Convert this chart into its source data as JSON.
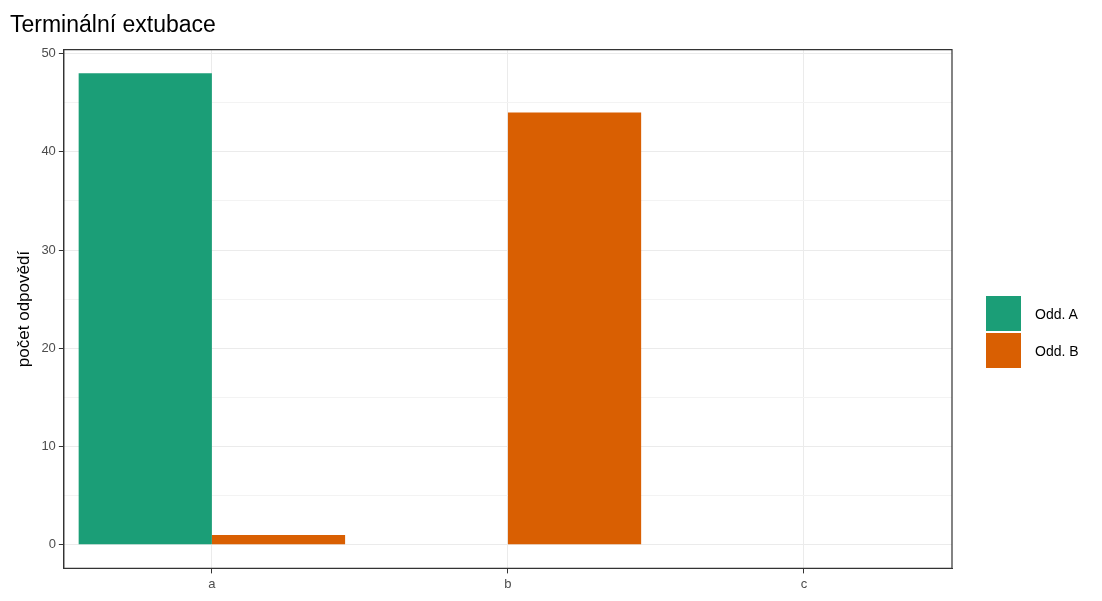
{
  "chart_data": {
    "type": "bar",
    "title": "Terminální extubace",
    "ylabel": "počet odpovědí",
    "categories": [
      "a",
      "b",
      "c"
    ],
    "series": [
      {
        "name": "Odd. A",
        "color": "#1b9e77",
        "values": [
          48,
          0,
          0
        ]
      },
      {
        "name": "Odd. B",
        "color": "#d95f02",
        "values": [
          1,
          44,
          0
        ]
      }
    ],
    "ylim": [
      -2.4,
      50.4
    ],
    "yticks": [
      0,
      {
        "value": 5,
        "label": null
      },
      10,
      {
        "value": 15,
        "label": null
      },
      20,
      {
        "value": 25,
        "label": null
      },
      30,
      {
        "value": 35,
        "label": null
      },
      40,
      {
        "value": 45,
        "label": null
      },
      50
    ],
    "grid": true,
    "legend": "right"
  }
}
